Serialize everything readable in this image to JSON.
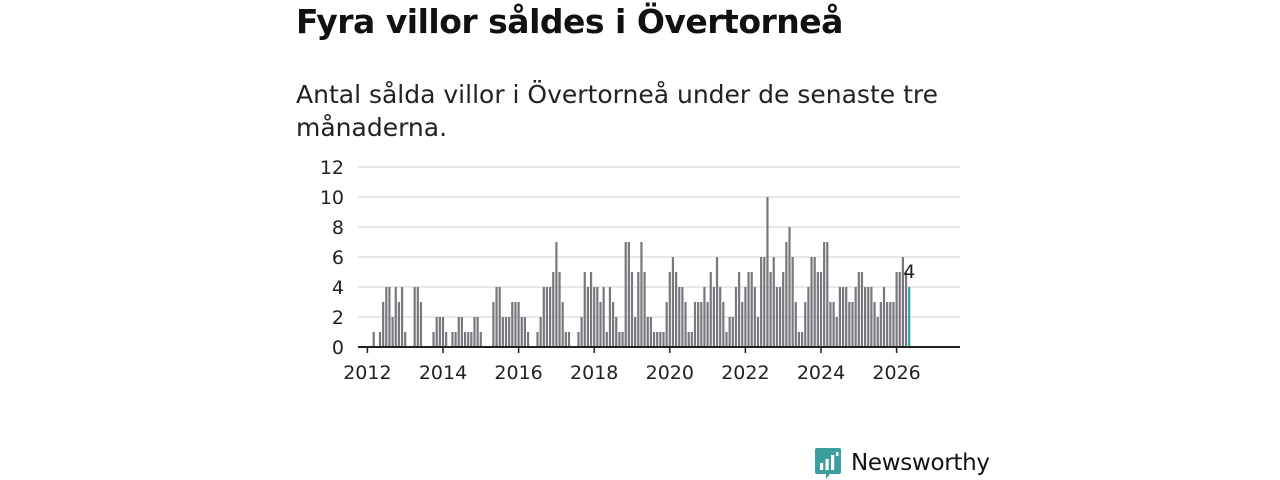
{
  "title": "Fyra villor såldes i Övertorneå",
  "subtitle": "Antal sålda villor i Övertorneå under de senaste tre månaderna.",
  "brand": {
    "name": "Newsworthy",
    "icon": "newsworthy-logo-icon"
  },
  "colors": {
    "bar": "#77777d",
    "highlight": "#2ba6a6",
    "grid": "#d9d9d9",
    "axis": "#222222",
    "brand": "#3d9e9e"
  },
  "chart_data": {
    "type": "bar",
    "title": "Antal sålda villor i Övertorneå",
    "xlabel": "",
    "ylabel": "",
    "ylim": [
      0,
      12
    ],
    "yticks": [
      "0",
      "2",
      "4",
      "6",
      "8",
      "10",
      "12"
    ],
    "xtick_labels": [
      "2012",
      "2014",
      "2016",
      "2018",
      "2020",
      "2022",
      "2024",
      "2026"
    ],
    "x_start": "2011-01",
    "period": "month",
    "values": [
      0,
      0,
      0,
      0,
      0,
      0,
      0,
      0,
      0,
      0,
      0,
      0,
      0,
      0,
      1,
      0,
      1,
      3,
      4,
      4,
      2,
      4,
      3,
      4,
      1,
      0,
      0,
      4,
      4,
      3,
      0,
      0,
      0,
      1,
      2,
      2,
      2,
      1,
      0,
      1,
      1,
      2,
      2,
      1,
      1,
      1,
      2,
      2,
      1,
      0,
      0,
      0,
      3,
      4,
      4,
      2,
      2,
      2,
      3,
      3,
      3,
      2,
      2,
      1,
      0,
      0,
      1,
      2,
      4,
      4,
      4,
      5,
      7,
      5,
      3,
      1,
      1,
      0,
      0,
      1,
      2,
      5,
      4,
      5,
      4,
      4,
      3,
      4,
      1,
      4,
      3,
      2,
      1,
      1,
      7,
      7,
      5,
      2,
      5,
      7,
      5,
      2,
      2,
      1,
      1,
      1,
      1,
      3,
      5,
      6,
      5,
      4,
      4,
      3,
      1,
      1,
      3,
      3,
      3,
      4,
      3,
      5,
      4,
      6,
      4,
      3,
      1,
      2,
      2,
      4,
      5,
      3,
      4,
      5,
      5,
      4,
      2,
      6,
      6,
      10,
      5,
      6,
      4,
      4,
      5,
      7,
      8,
      6,
      3,
      1,
      1,
      3,
      4,
      6,
      6,
      5,
      5,
      7,
      7,
      3,
      3,
      2,
      4,
      4,
      4,
      3,
      3,
      4,
      5,
      5,
      4,
      4,
      4,
      3,
      2,
      3,
      4,
      3,
      3,
      3,
      5,
      5,
      6,
      5,
      4
    ],
    "highlight_label": "4"
  }
}
